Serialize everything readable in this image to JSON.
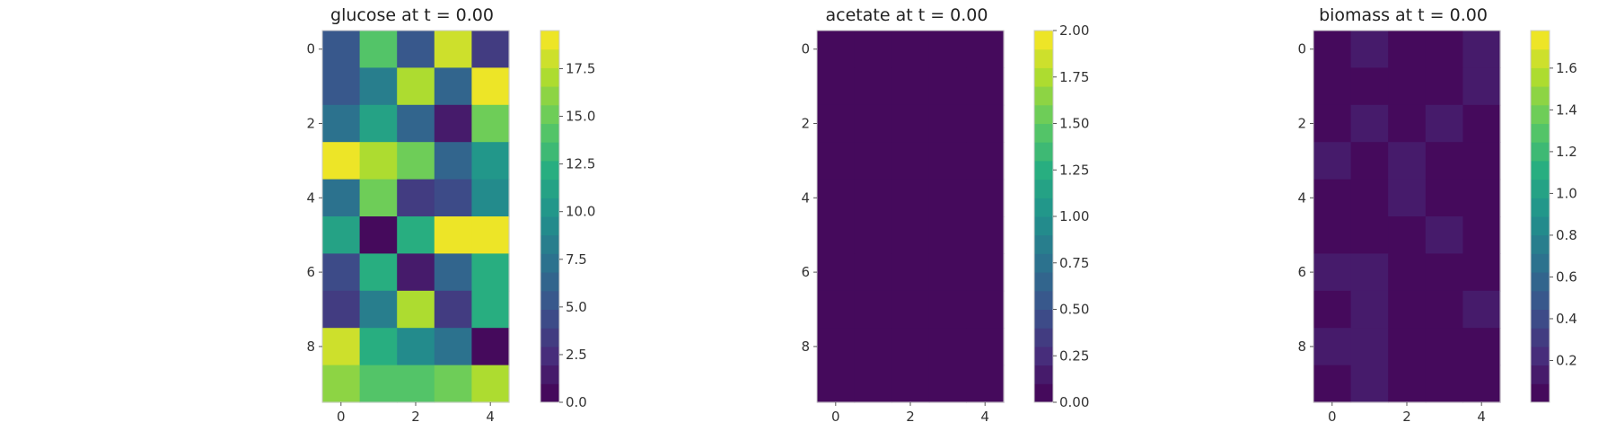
{
  "colormap": [
    "#440154",
    "#472d7b",
    "#3b528b",
    "#2c728e",
    "#21918c",
    "#28ae80",
    "#5ec962",
    "#addc30",
    "#fde725"
  ],
  "chart_data": [
    {
      "type": "heatmap",
      "title": "glucose at t = 0.00",
      "rows": 10,
      "cols": 5,
      "x_ticks": [
        0,
        2,
        4
      ],
      "y_ticks": [
        0,
        2,
        4,
        6,
        8
      ],
      "values": [
        [
          5.0,
          14.0,
          5.0,
          18.3,
          3.3
        ],
        [
          5.0,
          8.0,
          17.0,
          6.5,
          19.0
        ],
        [
          7.5,
          11.5,
          6.5,
          1.3,
          15.5
        ],
        [
          19.0,
          17.0,
          15.5,
          6.8,
          10.5
        ],
        [
          7.5,
          15.5,
          3.0,
          4.0,
          9.5
        ],
        [
          11.5,
          0.0,
          12.0,
          19.0,
          19.3
        ],
        [
          4.2,
          12.0,
          1.7,
          6.5,
          12.0
        ],
        [
          3.3,
          8.5,
          17.0,
          3.3,
          12.5
        ],
        [
          18.3,
          12.5,
          9.3,
          7.5,
          0.2
        ],
        [
          16.5,
          14.0,
          14.0,
          15.3,
          17.0
        ]
      ],
      "vmin": 0.0,
      "vmax": 19.5,
      "levels": 20,
      "colorbar_ticks": [
        0.0,
        2.5,
        5.0,
        7.5,
        10.0,
        12.5,
        15.0,
        17.5
      ],
      "colorbar_labels": [
        "0.0",
        "2.5",
        "5.0",
        "7.5",
        "10.0",
        "12.5",
        "15.0",
        "17.5"
      ]
    },
    {
      "type": "heatmap",
      "title": "acetate at t = 0.00",
      "rows": 10,
      "cols": 5,
      "x_ticks": [
        0,
        2,
        4
      ],
      "y_ticks": [
        0,
        2,
        4,
        6,
        8
      ],
      "values": [
        [
          0,
          0,
          0,
          0,
          0
        ],
        [
          0,
          0,
          0,
          0,
          0
        ],
        [
          0,
          0,
          0,
          0,
          0
        ],
        [
          0,
          0,
          0,
          0,
          0
        ],
        [
          0,
          0,
          0,
          0,
          0
        ],
        [
          0,
          0,
          0,
          0,
          0
        ],
        [
          0,
          0,
          0,
          0,
          0
        ],
        [
          0,
          0,
          0,
          0,
          0
        ],
        [
          0,
          0,
          0,
          0,
          0
        ],
        [
          0,
          0,
          0,
          0,
          0
        ]
      ],
      "vmin": 0.0,
      "vmax": 2.0,
      "levels": 20,
      "colorbar_ticks": [
        0.0,
        0.25,
        0.5,
        0.75,
        1.0,
        1.25,
        1.5,
        1.75,
        2.0
      ],
      "colorbar_labels": [
        "0.00",
        "0.25",
        "0.50",
        "0.75",
        "1.00",
        "1.25",
        "1.50",
        "1.75",
        "2.00"
      ]
    },
    {
      "type": "heatmap",
      "title": "biomass at t = 0.00",
      "rows": 10,
      "cols": 5,
      "x_ticks": [
        0,
        2,
        4
      ],
      "y_ticks": [
        0,
        2,
        4,
        6,
        8
      ],
      "values": [
        [
          0.02,
          0.1,
          0.02,
          0.02,
          0.1
        ],
        [
          0.02,
          0.02,
          0.02,
          0.02,
          0.1
        ],
        [
          0.02,
          0.1,
          0.02,
          0.1,
          0.02
        ],
        [
          0.1,
          0.02,
          0.1,
          0.02,
          0.02
        ],
        [
          0.02,
          0.02,
          0.1,
          0.02,
          0.02
        ],
        [
          0.02,
          0.02,
          0.02,
          0.1,
          0.02
        ],
        [
          0.1,
          0.1,
          0.02,
          0.02,
          0.02
        ],
        [
          0.02,
          0.1,
          0.02,
          0.02,
          0.1
        ],
        [
          0.1,
          0.1,
          0.02,
          0.02,
          0.02
        ],
        [
          0.02,
          0.1,
          0.02,
          0.02,
          0.02
        ]
      ],
      "vmin": 0.0,
      "vmax": 1.78,
      "levels": 20,
      "colorbar_ticks": [
        0.2,
        0.4,
        0.6,
        0.8,
        1.0,
        1.2,
        1.4,
        1.6
      ],
      "colorbar_labels": [
        "0.2",
        "0.4",
        "0.6",
        "0.8",
        "1.0",
        "1.2",
        "1.4",
        "1.6"
      ]
    }
  ]
}
